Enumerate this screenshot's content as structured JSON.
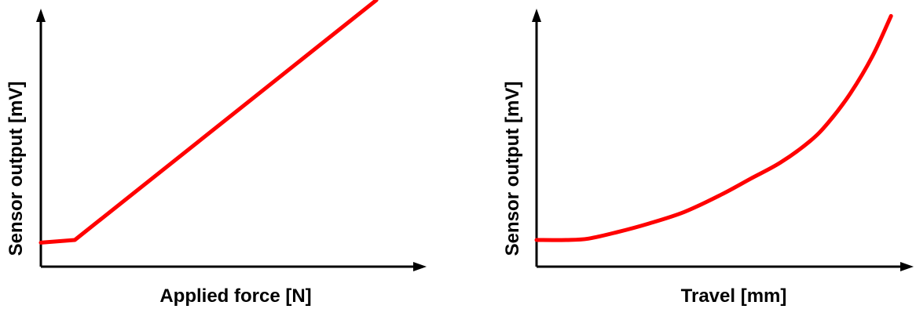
{
  "chart_data": [
    {
      "type": "line",
      "title": "",
      "xlabel": "Applied force  [N]",
      "ylabel": "Sensor output  [mV]",
      "grid": false,
      "line_color": "#ff0000",
      "axis_color": "#000000",
      "series": [
        {
          "x": [
            0.0,
            0.09,
            0.89
          ],
          "y": [
            0.09,
            0.1,
            1.0
          ]
        }
      ]
    },
    {
      "type": "line",
      "title": "",
      "xlabel": "Travel  [mm]",
      "ylabel": "Sensor output  [mV]",
      "grid": false,
      "line_color": "#ff0000",
      "axis_color": "#000000",
      "series": [
        {
          "x": [
            0.0,
            0.08,
            0.14,
            0.22,
            0.3,
            0.4,
            0.5,
            0.58,
            0.66,
            0.74,
            0.79,
            0.85,
            0.91,
            0.96
          ],
          "y": [
            0.1,
            0.1,
            0.105,
            0.13,
            0.16,
            0.205,
            0.27,
            0.33,
            0.39,
            0.47,
            0.54,
            0.65,
            0.79,
            0.94
          ]
        }
      ]
    }
  ]
}
